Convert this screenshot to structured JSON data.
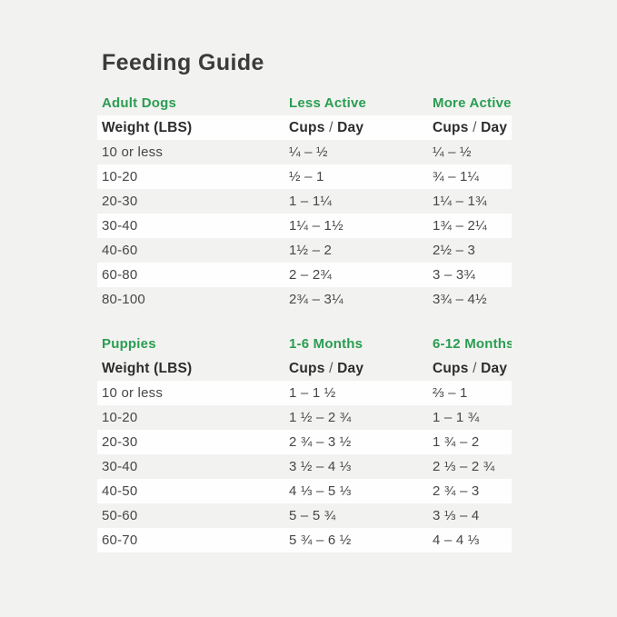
{
  "page": {
    "title": "Feeding Guide",
    "background_color": "#f2f2f0",
    "stripe_color": "#fefefe",
    "accent_green": "#2a9d52",
    "text_dark": "#3b3b3b"
  },
  "tables": [
    {
      "section": {
        "col1": "Adult Dogs",
        "col2": "Less Active",
        "col3": "More Active"
      },
      "header": {
        "col1": "Weight (LBS)",
        "cups": "Cups",
        "slash": "/",
        "day": "Day"
      },
      "rows": [
        {
          "w": "10 or less",
          "a": "¼ – ½",
          "b": "¼ – ½"
        },
        {
          "w": "10-20",
          "a": "½ – 1",
          "b": "¾ – 1¼"
        },
        {
          "w": "20-30",
          "a": "1 – 1¼",
          "b": "1¼ – 1¾"
        },
        {
          "w": "30-40",
          "a": "1¼ – 1½",
          "b": "1¾ – 2¼"
        },
        {
          "w": "40-60",
          "a": "1½ – 2",
          "b": "2½ – 3"
        },
        {
          "w": "60-80",
          "a": "2 – 2¾",
          "b": "3 – 3¾"
        },
        {
          "w": "80-100",
          "a": "2¾ – 3¼",
          "b": "3¾ – 4½"
        }
      ]
    },
    {
      "section": {
        "col1": "Puppies",
        "col2": "1-6 Months",
        "col3": "6-12 Months"
      },
      "header": {
        "col1": "Weight (LBS)",
        "cups": "Cups",
        "slash": "/",
        "day": "Day"
      },
      "rows": [
        {
          "w": "10 or less",
          "a": "1 – 1 ½",
          "b": "⅔ – 1"
        },
        {
          "w": "10-20",
          "a": "1 ½ – 2 ¾",
          "b": "1 – 1 ¾"
        },
        {
          "w": "20-30",
          "a": "2 ¾ – 3 ½",
          "b": "1 ¾ – 2"
        },
        {
          "w": "30-40",
          "a": "3 ½ – 4 ⅓",
          "b": "2 ⅓ – 2 ¾"
        },
        {
          "w": "40-50",
          "a": "4 ⅓ – 5 ⅓",
          "b": "2 ¾ – 3"
        },
        {
          "w": "50-60",
          "a": "5 – 5 ¾",
          "b": "3 ⅓ – 4"
        },
        {
          "w": "60-70",
          "a": "5 ¾ – 6 ½",
          "b": "4 – 4 ⅓"
        }
      ]
    }
  ]
}
